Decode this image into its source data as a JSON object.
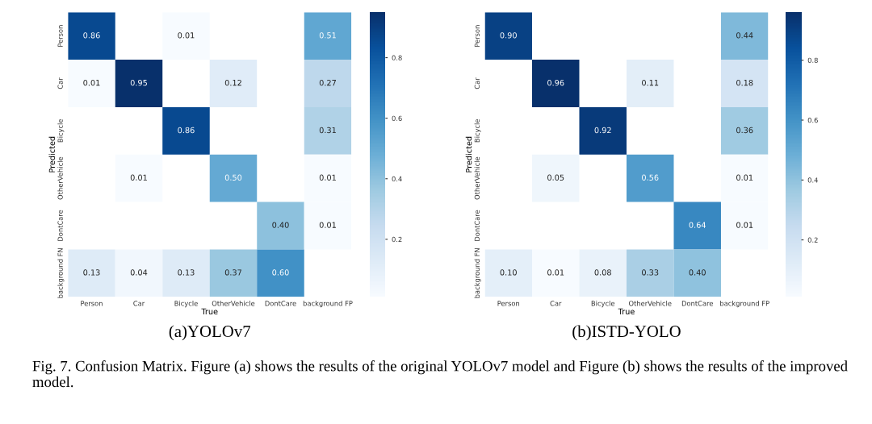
{
  "chart_data": [
    {
      "type": "heatmap",
      "title": "(a)YOLOv7",
      "xlabel": "True",
      "ylabel": "Predicted",
      "categories": [
        "Person",
        "Car",
        "Bicycle",
        "OtherVehicle",
        "DontCare",
        "background FP"
      ],
      "y_categories": [
        "Person",
        "Car",
        "Bicycle",
        "OtherVehicle",
        "DontCare",
        "background FN"
      ],
      "cells": [
        [
          0.86,
          null,
          0.01,
          null,
          null,
          0.51
        ],
        [
          0.01,
          0.95,
          null,
          0.12,
          null,
          0.27
        ],
        [
          null,
          null,
          0.86,
          null,
          null,
          0.31
        ],
        [
          null,
          0.01,
          null,
          0.5,
          null,
          0.01
        ],
        [
          null,
          null,
          null,
          null,
          0.4,
          0.01
        ],
        [
          0.13,
          0.04,
          0.13,
          0.37,
          0.6,
          null
        ]
      ],
      "cell_labels": [
        [
          "0.86",
          null,
          "0.01",
          null,
          null,
          "0.51"
        ],
        [
          "0.01",
          "0.95",
          null,
          "0.12",
          null,
          "0.27"
        ],
        [
          null,
          null,
          "0.86",
          null,
          null,
          "0.31"
        ],
        [
          null,
          "0.01",
          null,
          "0.50",
          null,
          "0.01"
        ],
        [
          null,
          null,
          null,
          null,
          "0.40",
          "0.01"
        ],
        [
          "0.13",
          "0.04",
          "0.13",
          "0.37",
          "0.60",
          null
        ]
      ],
      "clim": [
        0.01,
        0.95
      ],
      "cticks": [
        0.2,
        0.4,
        0.6,
        0.8
      ],
      "annotations": [
        "Fig. 7. Confusion Matrix. Figure (a) shows the results of the original YOLOv7 model and Figure (b) shows the results of the improved model."
      ]
    },
    {
      "type": "heatmap",
      "title": "(b)ISTD-YOLO",
      "xlabel": "True",
      "ylabel": "Predicted",
      "categories": [
        "Person",
        "Car",
        "Bicycle",
        "OtherVehicle",
        "DontCare",
        "background FP"
      ],
      "y_categories": [
        "Person",
        "Car",
        "Bicycle",
        "OtherVehicle",
        "DontCare",
        "background FN"
      ],
      "cells": [
        [
          0.9,
          null,
          null,
          null,
          null,
          0.44
        ],
        [
          null,
          0.96,
          null,
          0.11,
          null,
          0.18
        ],
        [
          null,
          null,
          0.92,
          null,
          null,
          0.36
        ],
        [
          null,
          0.05,
          null,
          0.56,
          null,
          0.01
        ],
        [
          null,
          null,
          null,
          null,
          0.64,
          0.01
        ],
        [
          0.1,
          0.01,
          0.08,
          0.33,
          0.4,
          null
        ]
      ],
      "cell_labels": [
        [
          "0.90",
          null,
          null,
          null,
          null,
          "0.44"
        ],
        [
          null,
          "0.96",
          null,
          "0.11",
          null,
          "0.18"
        ],
        [
          null,
          null,
          "0.92",
          null,
          null,
          "0.36"
        ],
        [
          null,
          "0.05",
          null,
          "0.56",
          null,
          "0.01"
        ],
        [
          null,
          null,
          null,
          null,
          "0.64",
          "0.01"
        ],
        [
          "0.10",
          "0.01",
          "0.08",
          "0.33",
          "0.40",
          null
        ]
      ],
      "clim": [
        0.01,
        0.96
      ],
      "cticks": [
        0.2,
        0.4,
        0.6,
        0.8
      ]
    }
  ]
}
